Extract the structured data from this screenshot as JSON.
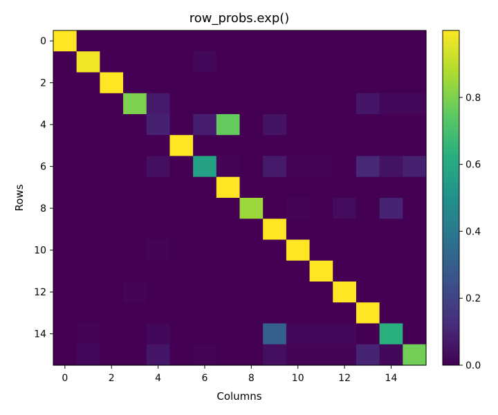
{
  "chart_data": {
    "type": "heatmap",
    "title": "row_probs.exp()",
    "xlabel": "Columns",
    "ylabel": "Rows",
    "x_ticks": [
      0,
      2,
      4,
      6,
      8,
      10,
      12,
      14
    ],
    "y_ticks": [
      0,
      2,
      4,
      6,
      8,
      10,
      12,
      14
    ],
    "colormap": "viridis",
    "vmin": 0.0,
    "vmax": 1.0,
    "colorbar_ticks": [
      0.0,
      0.2,
      0.4,
      0.6,
      0.8
    ],
    "colorbar_tick_labels": [
      "0.0",
      "0.2",
      "0.4",
      "0.6",
      "0.8"
    ],
    "matrix": [
      [
        1.0,
        0.0,
        0.0,
        0.0,
        0.0,
        0.0,
        0.0,
        0.0,
        0.0,
        0.0,
        0.0,
        0.0,
        0.0,
        0.0,
        0.0,
        0.0
      ],
      [
        0.0,
        0.98,
        0.0,
        0.0,
        0.0,
        0.0,
        0.02,
        0.0,
        0.0,
        0.0,
        0.0,
        0.0,
        0.0,
        0.0,
        0.0,
        0.0
      ],
      [
        0.0,
        0.0,
        1.0,
        0.0,
        0.0,
        0.0,
        0.0,
        0.0,
        0.0,
        0.0,
        0.0,
        0.0,
        0.0,
        0.0,
        0.0,
        0.0
      ],
      [
        0.0,
        0.0,
        0.0,
        0.8,
        0.07,
        0.0,
        0.0,
        0.0,
        0.0,
        0.0,
        0.0,
        0.0,
        0.0,
        0.06,
        0.02,
        0.02
      ],
      [
        0.0,
        0.0,
        0.0,
        0.0,
        0.09,
        0.0,
        0.08,
        0.76,
        0.0,
        0.05,
        0.0,
        0.0,
        0.0,
        0.0,
        0.0,
        0.0
      ],
      [
        0.0,
        0.0,
        0.0,
        0.0,
        0.0,
        1.0,
        0.0,
        0.0,
        0.0,
        0.0,
        0.0,
        0.0,
        0.0,
        0.0,
        0.0,
        0.0
      ],
      [
        0.0,
        0.0,
        0.0,
        0.0,
        0.04,
        0.0,
        0.57,
        0.01,
        0.0,
        0.07,
        0.01,
        0.01,
        0.0,
        0.11,
        0.05,
        0.09
      ],
      [
        0.0,
        0.0,
        0.0,
        0.0,
        0.0,
        0.0,
        0.0,
        1.0,
        0.0,
        0.0,
        0.0,
        0.0,
        0.0,
        0.0,
        0.0,
        0.0
      ],
      [
        0.0,
        0.0,
        0.0,
        0.0,
        0.0,
        0.0,
        0.0,
        0.0,
        0.85,
        0.0,
        0.01,
        0.0,
        0.03,
        0.0,
        0.1,
        0.0
      ],
      [
        0.0,
        0.0,
        0.0,
        0.0,
        0.0,
        0.0,
        0.0,
        0.0,
        0.0,
        1.0,
        0.0,
        0.0,
        0.0,
        0.0,
        0.0,
        0.0
      ],
      [
        0.0,
        0.0,
        0.0,
        0.0,
        0.01,
        0.0,
        0.0,
        0.0,
        0.0,
        0.0,
        1.0,
        0.0,
        0.0,
        0.0,
        0.0,
        0.0
      ],
      [
        0.0,
        0.0,
        0.0,
        0.0,
        0.0,
        0.0,
        0.0,
        0.0,
        0.0,
        0.0,
        0.0,
        1.0,
        0.0,
        0.0,
        0.0,
        0.0
      ],
      [
        0.0,
        0.0,
        0.0,
        0.01,
        0.0,
        0.0,
        0.0,
        0.0,
        0.0,
        0.0,
        0.0,
        0.0,
        1.0,
        0.0,
        0.0,
        0.0
      ],
      [
        0.0,
        0.0,
        0.0,
        0.0,
        0.0,
        0.0,
        0.0,
        0.0,
        0.0,
        0.0,
        0.0,
        0.0,
        0.0,
        1.0,
        0.0,
        0.0
      ],
      [
        0.0,
        0.01,
        0.0,
        0.0,
        0.02,
        0.0,
        0.0,
        0.0,
        0.0,
        0.3,
        0.02,
        0.02,
        0.02,
        0.0,
        0.63,
        0.0
      ],
      [
        0.0,
        0.02,
        0.0,
        0.0,
        0.06,
        0.0,
        0.01,
        0.0,
        0.0,
        0.04,
        0.01,
        0.01,
        0.01,
        0.1,
        0.02,
        0.78
      ]
    ]
  }
}
